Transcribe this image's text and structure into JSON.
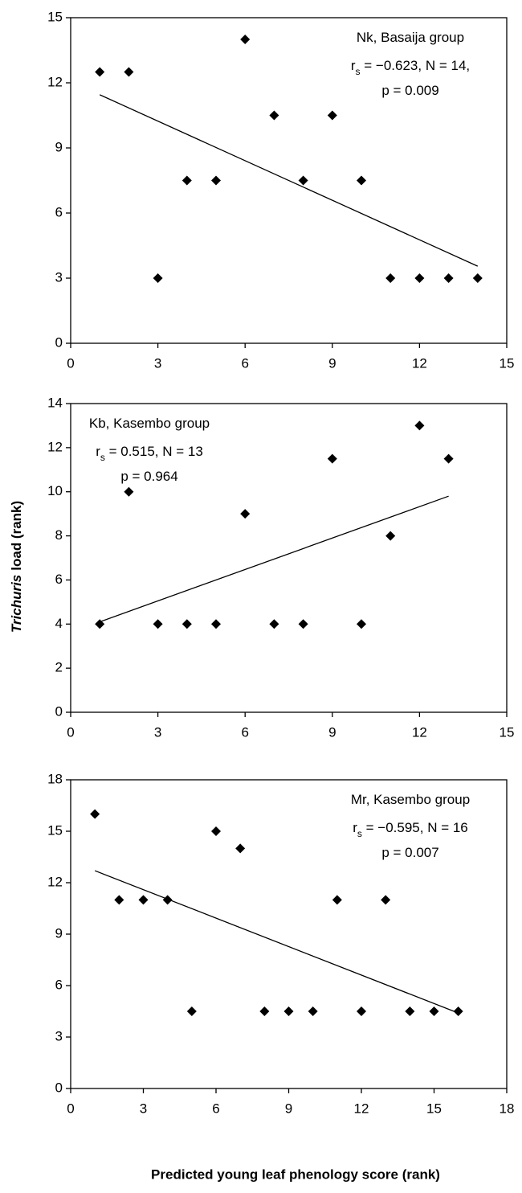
{
  "ylabel": [
    "Trichuris",
    "load (rank)"
  ],
  "xlabel": "Predicted young leaf phenology score (rank)",
  "chart_data": [
    {
      "type": "scatter",
      "color": "#000000",
      "annotation_corner": "top-right",
      "annotation": [
        [
          {
            "text": "Nk, Basaija group"
          }
        ],
        [
          {
            "text": "r"
          },
          {
            "text": "s",
            "subscript": true
          },
          {
            "text": " = −0.623, N = 14,"
          }
        ],
        [
          {
            "text": "p = 0.009"
          }
        ]
      ],
      "x": [
        1,
        2,
        3,
        4,
        5,
        6,
        7,
        8,
        9,
        10,
        11,
        12,
        13,
        14
      ],
      "values": [
        12.5,
        12.5,
        3,
        7.5,
        7.5,
        14,
        10.5,
        7.5,
        10.5,
        7.5,
        3,
        3,
        3,
        3
      ],
      "trendline": {
        "x": [
          1,
          14
        ],
        "values": [
          11.45,
          3.55
        ]
      },
      "xlim": [
        0,
        15
      ],
      "xticks": [
        0,
        3,
        6,
        9,
        12,
        15
      ],
      "ylim": [
        0,
        15
      ],
      "yticks": [
        0,
        3,
        6,
        9,
        12,
        15
      ]
    },
    {
      "type": "scatter",
      "color": "#000000",
      "annotation_corner": "top-left",
      "annotation": [
        [
          {
            "text": "Kb, Kasembo group"
          }
        ],
        [
          {
            "text": "r"
          },
          {
            "text": "s",
            "subscript": true
          },
          {
            "text": " = 0.515, N = 13"
          }
        ],
        [
          {
            "text": "p = 0.964"
          }
        ]
      ],
      "x": [
        1,
        2,
        3,
        4,
        5,
        6,
        7,
        8,
        9,
        10,
        11,
        12,
        13
      ],
      "values": [
        4,
        10,
        4,
        4,
        4,
        9,
        4,
        4,
        11.5,
        4,
        8,
        13,
        11.5
      ],
      "trendline": {
        "x": [
          1,
          13
        ],
        "values": [
          4.1,
          9.8
        ]
      },
      "xlim": [
        0,
        15
      ],
      "xticks": [
        0,
        3,
        6,
        9,
        12,
        15
      ],
      "ylim": [
        0,
        14
      ],
      "yticks": [
        0,
        2,
        4,
        6,
        8,
        10,
        12,
        14
      ]
    },
    {
      "type": "scatter",
      "color": "#000000",
      "annotation_corner": "top-right",
      "annotation": [
        [
          {
            "text": "Mr, Kasembo group"
          }
        ],
        [
          {
            "text": "r"
          },
          {
            "text": "s",
            "subscript": true
          },
          {
            "text": " = −0.595, N = 16"
          }
        ],
        [
          {
            "text": "p = 0.007"
          }
        ]
      ],
      "x": [
        1,
        2,
        3,
        4,
        5,
        6,
        7,
        8,
        9,
        10,
        11,
        12,
        13,
        14,
        15,
        16
      ],
      "values": [
        16,
        11,
        11,
        11,
        4.5,
        15,
        14,
        4.5,
        4.5,
        4.5,
        11,
        4.5,
        11,
        4.5,
        4.5,
        4.5
      ],
      "trendline": {
        "x": [
          1,
          16
        ],
        "values": [
          12.7,
          4.4
        ]
      },
      "xlim": [
        0,
        18
      ],
      "xticks": [
        0,
        3,
        6,
        9,
        12,
        15,
        18
      ],
      "ylim": [
        0,
        18
      ],
      "yticks": [
        0,
        3,
        6,
        9,
        12,
        15,
        18
      ]
    }
  ]
}
